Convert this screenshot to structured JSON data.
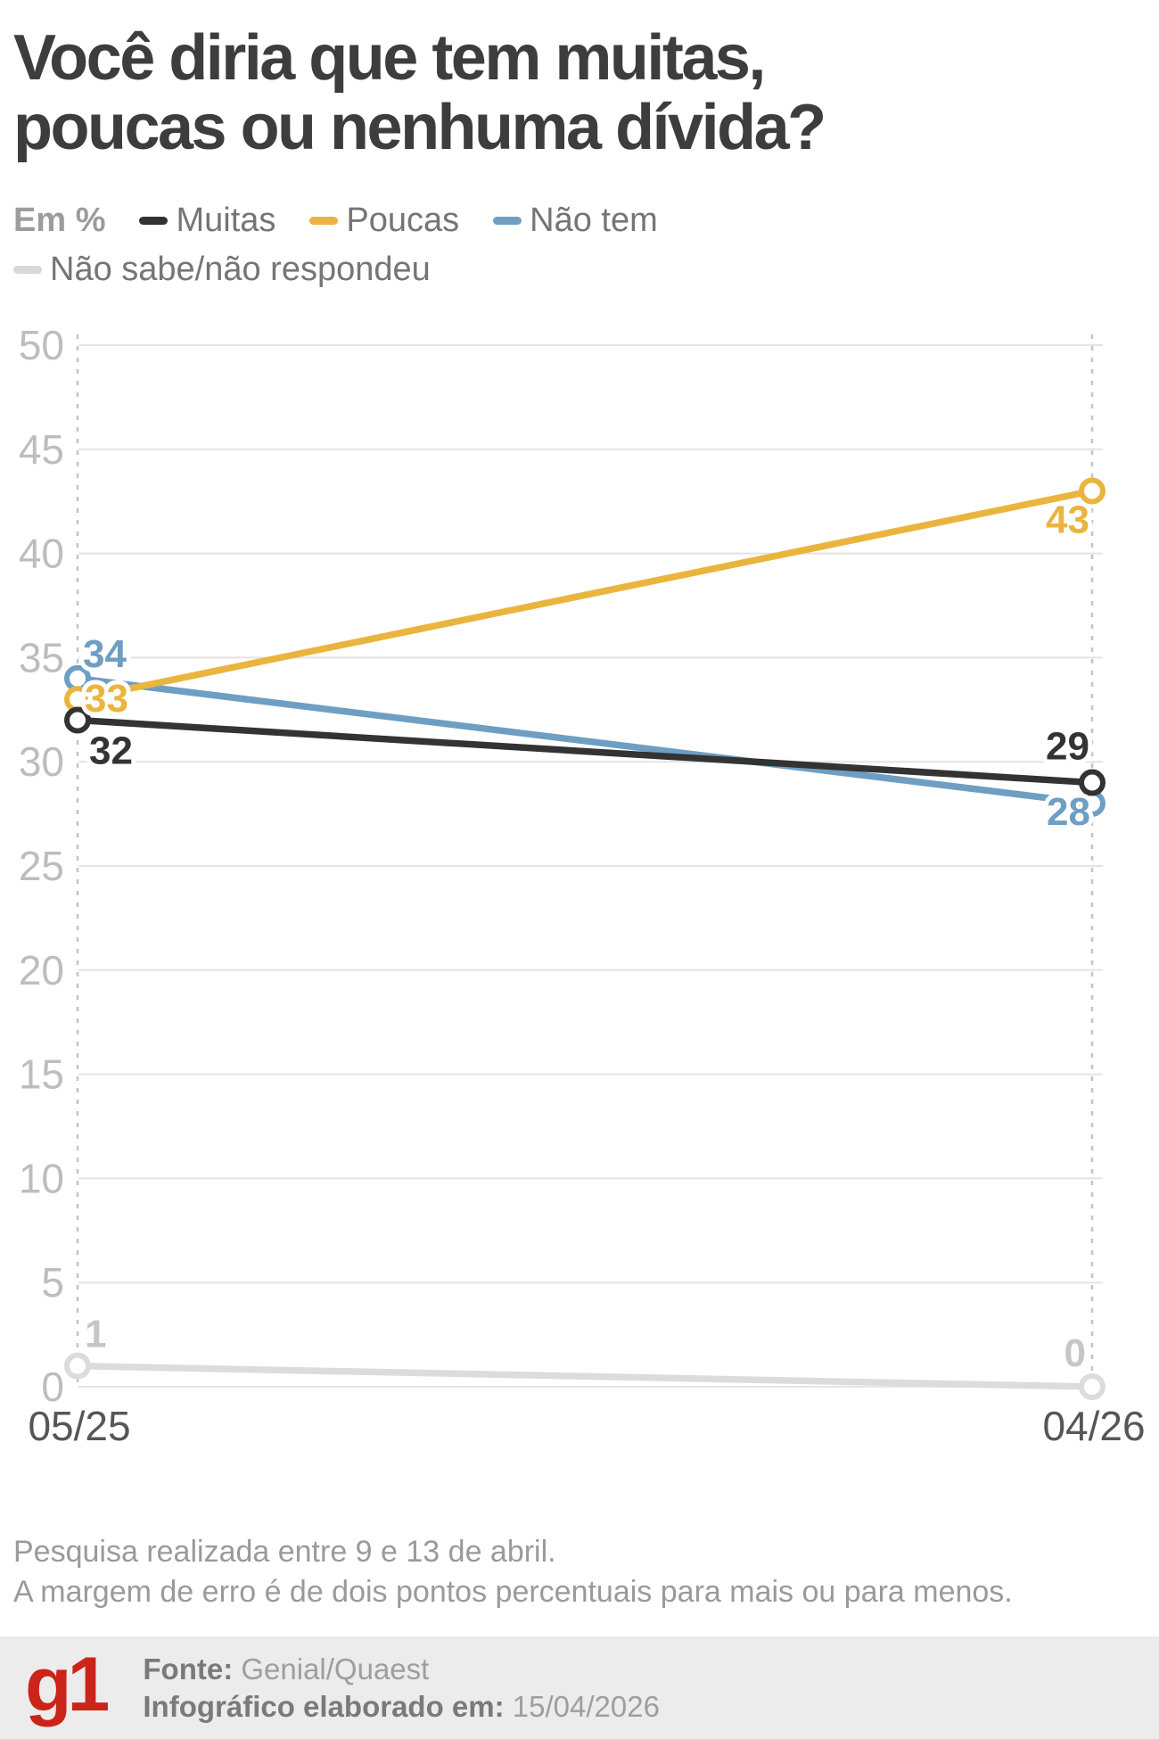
{
  "title": {
    "line1": "Você diria que tem muitas,",
    "line2": "poucas ou nenhuma dívida?"
  },
  "legend": {
    "unit_label": "Em %",
    "items": [
      {
        "label": "Muitas",
        "color": "#333333"
      },
      {
        "label": "Poucas",
        "color": "#eab53e"
      },
      {
        "label": "Não tem",
        "color": "#6f9ec3"
      },
      {
        "label": "Não sabe/não respondeu",
        "color": "#d8d8d8"
      }
    ]
  },
  "chart_data": {
    "type": "line",
    "categories": [
      "05/25",
      "04/26"
    ],
    "series": [
      {
        "name": "Muitas",
        "color": "#333333",
        "values": [
          32,
          29
        ]
      },
      {
        "name": "Poucas",
        "color": "#eab53e",
        "values": [
          33,
          43
        ]
      },
      {
        "name": "Não tem",
        "color": "#6f9ec3",
        "values": [
          34,
          28
        ]
      },
      {
        "name": "Não sabe/não respondeu",
        "color": "#dcdcdc",
        "label_color": "#c6c6c6",
        "values": [
          1,
          0
        ]
      }
    ],
    "ylabel": "Em %",
    "ylim": [
      0,
      50
    ],
    "ytick_step": 5,
    "grid": true,
    "legend_position": "top",
    "axis_colors": {
      "gridline": "#e4e4e4",
      "dotted_guide": "#c4c4c4",
      "y_tick_label": "#bdbdbd",
      "x_tick_label": "#565656"
    }
  },
  "notes": {
    "line1": "Pesquisa realizada entre 9 e 13 de abril.",
    "line2": "A margem de erro é de dois pontos percentuais para mais ou para menos."
  },
  "footer": {
    "logo_text": "g1",
    "logo_color": "#cb2418",
    "source_label": "Fonte:",
    "source_value": "Genial/Quaest",
    "infographic_label": "Infográfico elaborado em:",
    "infographic_value": "15/04/2026"
  }
}
